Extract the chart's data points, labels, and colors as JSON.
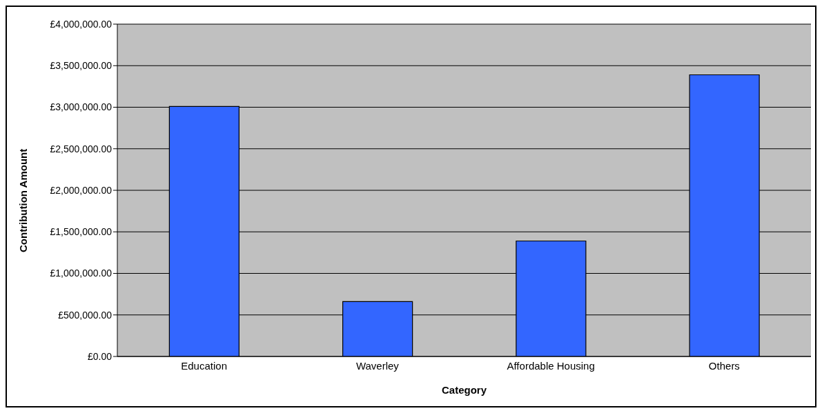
{
  "chart_data": {
    "type": "bar",
    "xlabel": "Category",
    "ylabel": "Contribution Amount",
    "categories": [
      "Education",
      "Waverley",
      "Affordable Housing",
      "Others"
    ],
    "values": [
      3010000,
      660000,
      1390000,
      3390000
    ],
    "color": "#3366ff",
    "ylim": [
      0,
      4000000
    ],
    "yticks": [
      {
        "value": 0,
        "label": "£0.00"
      },
      {
        "value": 500000,
        "label": "£500,000.00"
      },
      {
        "value": 1000000,
        "label": "£1,000,000.00"
      },
      {
        "value": 1500000,
        "label": "£1,500,000.00"
      },
      {
        "value": 2000000,
        "label": "£2,000,000.00"
      },
      {
        "value": 2500000,
        "label": "£2,500,000.00"
      },
      {
        "value": 3000000,
        "label": "£3,000,000.00"
      },
      {
        "value": 3500000,
        "label": "£3,500,000.00"
      },
      {
        "value": 4000000,
        "label": "£4,000,000.00"
      }
    ],
    "grid": "y"
  }
}
